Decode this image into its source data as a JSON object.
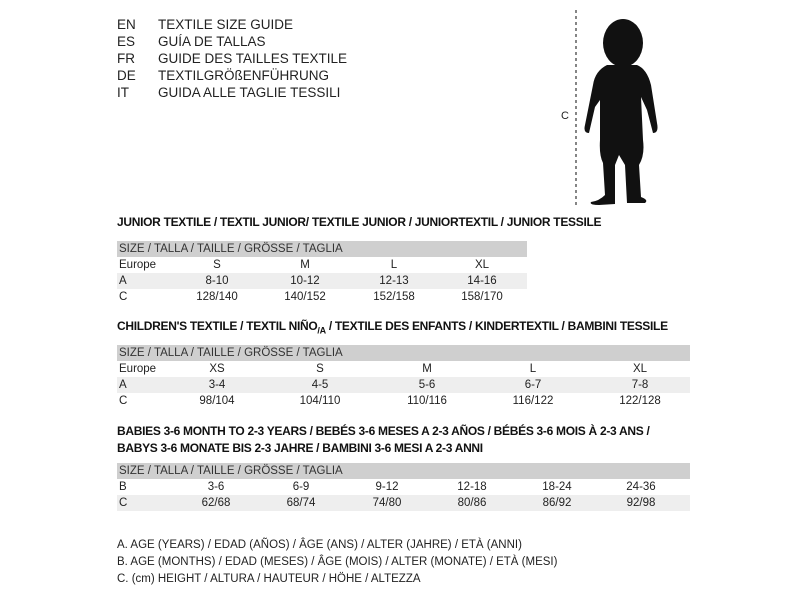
{
  "languages": [
    {
      "code": "EN",
      "text": "TEXTILE SIZE GUIDE"
    },
    {
      "code": "ES",
      "text": "GUÍA DE TALLAS"
    },
    {
      "code": "FR",
      "text": "GUIDE DES TAILLES TEXTILE"
    },
    {
      "code": "DE",
      "text": "TEXTILGRÖßENFÜHRUNG"
    },
    {
      "code": "IT",
      "text": "GUIDA ALLE TAGLIE TESSILI"
    }
  ],
  "figure": {
    "measure_label": "C",
    "icon": "baby-silhouette"
  },
  "junior": {
    "title": "JUNIOR TEXTILE / TEXTIL JUNIOR/ TEXTILE JUNIOR / JUNIORTEXTIL / JUNIOR TESSILE",
    "header": "SIZE / TALLA / TAILLE / GRÖSSE / TAGLIA",
    "rows": [
      {
        "label": "Europe",
        "cells": [
          "S",
          "M",
          "L",
          "XL"
        ]
      },
      {
        "label": "A",
        "cells": [
          "8-10",
          "10-12",
          "12-13",
          "14-16"
        ]
      },
      {
        "label": "C",
        "cells": [
          "128/140",
          "140/152",
          "152/158",
          "158/170"
        ]
      }
    ]
  },
  "children": {
    "title_a": "CHILDREN'S TEXTILE / TEXTIL NIÑO",
    "title_sub": "/A",
    "title_b": " / TEXTILE DES ENFANTS / KINDERTEXTIL / BAMBINI TESSILE",
    "header": "SIZE / TALLA / TAILLE / GRÖSSE / TAGLIA",
    "rows": [
      {
        "label": "Europe",
        "cells": [
          "XS",
          "S",
          "M",
          "L",
          "XL"
        ]
      },
      {
        "label": "A",
        "cells": [
          "3-4",
          "4-5",
          "5-6",
          "6-7",
          "7-8"
        ]
      },
      {
        "label": "C",
        "cells": [
          "98/104",
          "104/110",
          "110/116",
          "116/122",
          "122/128"
        ]
      }
    ]
  },
  "babies": {
    "title_line1": "BABIES 3-6 MONTH TO 2-3 YEARS / BEBÉS 3-6 MESES A 2-3 AÑOS / BÉBÉS 3-6 MOIS À 2-3 ANS /",
    "title_line2": "BABYS 3-6 MONATE BIS 2-3 JAHRE / BAMBINI 3-6 MESI A 2-3 ANNI",
    "header": "SIZE / TALLA / TAILLE / GRÖSSE / TAGLIA",
    "rows": [
      {
        "label": "B",
        "cells": [
          "3-6",
          "6-9",
          "9-12",
          "12-18",
          "18-24",
          "24-36"
        ]
      },
      {
        "label": "C",
        "cells": [
          "62/68",
          "68/74",
          "74/80",
          "80/86",
          "86/92",
          "92/98"
        ]
      }
    ]
  },
  "legend": [
    "A. AGE (YEARS) / EDAD (AÑOS) / ÂGE (ANS) / ALTER (JAHRE) / ETÀ (ANNI)",
    "B. AGE (MONTHS) / EDAD (MESES) / ÂGE (MOIS) / ALTER (MONATE) / ETÀ (MESI)",
    "C. (cm) HEIGHT / ALTURA / HAUTEUR / HÖHE / ALTEZZA"
  ]
}
